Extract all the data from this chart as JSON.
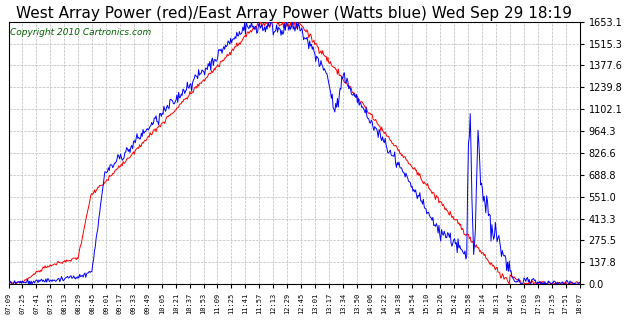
{
  "title": "West Array Power (red)/East Array Power (Watts blue) Wed Sep 29 18:19",
  "copyright": "Copyright 2010 Cartronics.com",
  "yticks": [
    0.0,
    137.8,
    275.5,
    413.3,
    551.0,
    688.8,
    826.6,
    964.3,
    1102.1,
    1239.8,
    1377.6,
    1515.3,
    1653.1
  ],
  "ymax": 1653.1,
  "ymin": 0.0,
  "xtick_labels": [
    "07:09",
    "07:25",
    "07:41",
    "07:53",
    "08:13",
    "08:29",
    "08:45",
    "09:01",
    "09:17",
    "09:33",
    "09:49",
    "10:05",
    "10:21",
    "10:37",
    "10:53",
    "11:09",
    "11:25",
    "11:41",
    "11:57",
    "12:13",
    "12:29",
    "12:45",
    "13:01",
    "13:17",
    "13:34",
    "13:50",
    "14:06",
    "14:22",
    "14:38",
    "14:54",
    "15:10",
    "15:26",
    "15:42",
    "15:58",
    "16:14",
    "16:31",
    "16:47",
    "17:03",
    "17:19",
    "17:35",
    "17:51",
    "18:07"
  ],
  "bg_color": "#ffffff",
  "grid_color": "#bbbbbb",
  "red_color": "#ff0000",
  "blue_color": "#0000ff",
  "title_fontsize": 11,
  "copyright_fontsize": 6.5
}
